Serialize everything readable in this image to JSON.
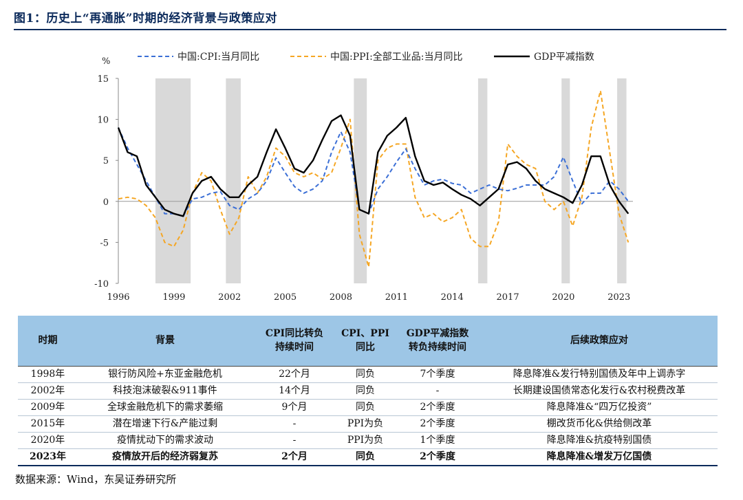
{
  "title": "图1：历史上“再通胀”时期的经济背景与政策应对",
  "source": "数据来源：Wind，东吴证券研究所",
  "colors": {
    "cpi": "#3b6fd6",
    "ppi": "#f5a623",
    "gdp": "#000000",
    "shade": "#d9d9d9",
    "header_bg": "#9dc6e6",
    "navy": "#0b2a5b"
  },
  "chart_data": {
    "type": "line",
    "ylabel": "%",
    "ylim": [
      -10,
      15
    ],
    "yticks": [
      -10,
      -5,
      0,
      5,
      10,
      15
    ],
    "xlim": [
      1996.0,
      2023.75
    ],
    "xticks": [
      1996,
      1999,
      2002,
      2005,
      2008,
      2011,
      2014,
      2017,
      2020,
      2023
    ],
    "legend": [
      "中国:CPI:当月同比",
      "中国:PPI:全部工业品:当月同比",
      "GDP平减指数"
    ],
    "legend_position": "top",
    "shaded_periods": [
      [
        1998.0,
        1999.9
      ],
      [
        2001.8,
        2002.6
      ],
      [
        2008.7,
        2009.4
      ],
      [
        2015.4,
        2015.9
      ],
      [
        2019.9,
        2020.35
      ],
      [
        2022.9,
        2023.4
      ]
    ],
    "series": [
      {
        "name": "中国:CPI:当月同比",
        "style": "dashed",
        "x": [
          1996.0,
          1996.5,
          1997.0,
          1997.5,
          1998.0,
          1998.5,
          1999.0,
          1999.5,
          2000.0,
          2000.5,
          2001.0,
          2001.5,
          2002.0,
          2002.5,
          2003.0,
          2003.5,
          2004.0,
          2004.5,
          2005.0,
          2005.5,
          2006.0,
          2006.5,
          2007.0,
          2007.5,
          2008.0,
          2008.5,
          2009.0,
          2009.5,
          2010.0,
          2010.5,
          2011.0,
          2011.5,
          2012.0,
          2012.5,
          2013.0,
          2013.5,
          2014.0,
          2014.5,
          2015.0,
          2015.5,
          2016.0,
          2016.5,
          2017.0,
          2017.5,
          2018.0,
          2018.5,
          2019.0,
          2019.5,
          2020.0,
          2020.5,
          2021.0,
          2021.5,
          2022.0,
          2022.5,
          2023.0,
          2023.5
        ],
        "values": [
          9.0,
          6.5,
          4.5,
          2.5,
          0.5,
          -1.5,
          -1.5,
          -1.8,
          0.3,
          0.5,
          1.0,
          1.2,
          -0.5,
          -1.0,
          0.3,
          1.0,
          2.5,
          5.3,
          3.5,
          1.8,
          1.0,
          1.5,
          2.5,
          6.0,
          8.5,
          6.0,
          -1.0,
          -1.5,
          1.5,
          3.0,
          4.8,
          6.4,
          4.0,
          2.0,
          2.5,
          2.7,
          2.2,
          2.0,
          1.0,
          1.5,
          2.0,
          1.5,
          1.3,
          1.6,
          2.0,
          2.0,
          2.0,
          3.0,
          5.4,
          2.5,
          -0.3,
          1.0,
          1.0,
          2.5,
          1.5,
          0.0
        ]
      },
      {
        "name": "中国:PPI:全部工业品:当月同比",
        "style": "dashed",
        "x": [
          1996.0,
          1996.5,
          1997.0,
          1997.5,
          1998.0,
          1998.5,
          1999.0,
          1999.5,
          2000.0,
          2000.5,
          2001.0,
          2001.5,
          2002.0,
          2002.5,
          2003.0,
          2003.5,
          2004.0,
          2004.5,
          2005.0,
          2005.5,
          2006.0,
          2006.5,
          2007.0,
          2007.5,
          2008.0,
          2008.5,
          2009.0,
          2009.5,
          2010.0,
          2010.5,
          2011.0,
          2011.5,
          2012.0,
          2012.5,
          2013.0,
          2013.5,
          2014.0,
          2014.5,
          2015.0,
          2015.5,
          2016.0,
          2016.5,
          2017.0,
          2017.5,
          2018.0,
          2018.5,
          2019.0,
          2019.5,
          2020.0,
          2020.5,
          2021.0,
          2021.5,
          2022.0,
          2022.5,
          2023.0,
          2023.5
        ],
        "values": [
          0.3,
          0.5,
          0.3,
          -0.5,
          -2.0,
          -5.0,
          -5.5,
          -3.5,
          1.0,
          3.5,
          2.5,
          -1.0,
          -4.0,
          -2.0,
          3.0,
          1.0,
          3.0,
          6.5,
          5.5,
          3.5,
          3.0,
          3.5,
          2.7,
          3.5,
          6.5,
          10.0,
          -4.0,
          -8.0,
          5.0,
          6.5,
          7.0,
          7.0,
          0.5,
          -2.0,
          -1.5,
          -2.5,
          -2.0,
          -1.0,
          -4.5,
          -5.5,
          -5.5,
          -2.5,
          7.0,
          5.5,
          4.5,
          4.0,
          0.0,
          -1.0,
          0.0,
          -3.0,
          0.5,
          9.0,
          13.5,
          6.0,
          -1.5,
          -5.0
        ]
      },
      {
        "name": "GDP平减指数",
        "style": "solid",
        "x": [
          1996.0,
          1996.5,
          1997.0,
          1997.5,
          1998.0,
          1998.5,
          1999.0,
          1999.5,
          2000.0,
          2000.5,
          2001.0,
          2001.5,
          2002.0,
          2002.5,
          2003.0,
          2003.5,
          2004.0,
          2004.5,
          2005.0,
          2005.5,
          2006.0,
          2006.5,
          2007.0,
          2007.5,
          2008.0,
          2008.5,
          2009.0,
          2009.5,
          2010.0,
          2010.5,
          2011.0,
          2011.5,
          2012.0,
          2012.5,
          2013.0,
          2013.5,
          2014.0,
          2014.5,
          2015.0,
          2015.5,
          2016.0,
          2016.5,
          2017.0,
          2017.5,
          2018.0,
          2018.5,
          2019.0,
          2019.5,
          2020.0,
          2020.5,
          2021.0,
          2021.5,
          2022.0,
          2022.5,
          2023.0,
          2023.5
        ],
        "values": [
          9.0,
          6.0,
          5.5,
          2.0,
          0.5,
          -1.0,
          -1.5,
          -1.8,
          1.0,
          2.5,
          3.0,
          1.5,
          0.5,
          0.5,
          2.0,
          3.0,
          6.0,
          8.8,
          6.5,
          4.0,
          3.5,
          5.0,
          7.5,
          9.8,
          10.5,
          8.0,
          -1.0,
          -1.5,
          6.0,
          8.0,
          9.0,
          10.2,
          5.5,
          2.5,
          2.0,
          2.3,
          1.5,
          0.8,
          0.3,
          -0.5,
          0.5,
          1.5,
          4.5,
          4.8,
          4.0,
          2.5,
          1.5,
          1.0,
          0.5,
          -0.2,
          2.0,
          5.5,
          5.5,
          2.0,
          0.0,
          -1.5
        ]
      }
    ]
  },
  "table": {
    "headers": [
      "时期",
      "背景",
      "CPI同比转负持续时间",
      "CPI、PPI同比",
      "GDP平减指数转负持续时间",
      "后续政策应对"
    ],
    "rows": [
      [
        "1998年",
        "银行防风险+东亚金融危机",
        "22个月",
        "同负",
        "7个季度",
        "降息降准&发行特别国债及年中上调赤字"
      ],
      [
        "2002年",
        "科技泡沫破裂&911事件",
        "14个月",
        "同负",
        "-",
        "长期建设国债常态化发行&农村税费改革"
      ],
      [
        "2009年",
        "全球金融危机下的需求萎缩",
        "9个月",
        "同负",
        "2个季度",
        "降息降准&“四万亿投资”"
      ],
      [
        "2015年",
        "潜在增速下行&产能过剩",
        "-",
        "PPI为负",
        "2个季度",
        "棚改货币化&供给侧改革"
      ],
      [
        "2020年",
        "疫情扰动下的需求波动",
        "-",
        "PPI为负",
        "1个季度",
        "降息降准&抗疫特别国债"
      ],
      [
        "2023年",
        "疫情放开后的经济弱复苏",
        "2个月",
        "同负",
        "2个季度",
        "降息降准&增发万亿国债"
      ]
    ]
  }
}
